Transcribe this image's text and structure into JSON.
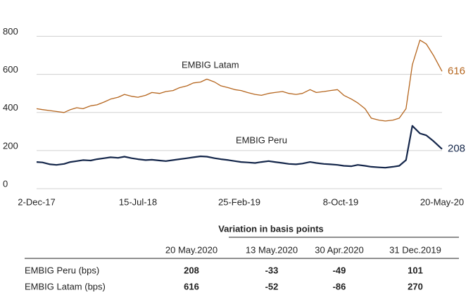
{
  "chart_data": {
    "type": "line",
    "annotations": [
      "EMBIG Latam",
      "EMBIG Peru"
    ],
    "x": [
      "2017-12-02",
      "2017-12-15",
      "2018-01-01",
      "2018-01-15",
      "2018-02-01",
      "2018-02-15",
      "2018-03-01",
      "2018-03-15",
      "2018-04-01",
      "2018-04-15",
      "2018-05-01",
      "2018-05-15",
      "2018-06-01",
      "2018-06-15",
      "2018-07-01",
      "2018-07-15",
      "2018-08-01",
      "2018-08-15",
      "2018-09-01",
      "2018-09-15",
      "2018-10-01",
      "2018-10-15",
      "2018-11-01",
      "2018-11-15",
      "2018-12-01",
      "2018-12-15",
      "2019-01-01",
      "2019-01-15",
      "2019-02-01",
      "2019-02-15",
      "2019-03-01",
      "2019-03-15",
      "2019-04-01",
      "2019-04-15",
      "2019-05-01",
      "2019-05-15",
      "2019-06-01",
      "2019-06-15",
      "2019-07-01",
      "2019-07-15",
      "2019-08-01",
      "2019-08-15",
      "2019-09-01",
      "2019-09-15",
      "2019-10-01",
      "2019-10-15",
      "2019-11-01",
      "2019-11-15",
      "2019-12-01",
      "2019-12-15",
      "2020-01-01",
      "2020-01-15",
      "2020-02-01",
      "2020-02-15",
      "2020-03-01",
      "2020-03-15",
      "2020-04-01",
      "2020-04-15",
      "2020-05-01",
      "2020-05-20"
    ],
    "series": [
      {
        "name": "EMBIG Latam",
        "color": "#b5651d",
        "values": [
          420,
          415,
          410,
          405,
          400,
          415,
          425,
          420,
          435,
          440,
          455,
          470,
          480,
          495,
          485,
          480,
          490,
          505,
          500,
          510,
          515,
          530,
          540,
          555,
          560,
          575,
          560,
          540,
          530,
          520,
          515,
          505,
          495,
          490,
          500,
          505,
          510,
          500,
          495,
          500,
          520,
          505,
          510,
          515,
          520,
          490,
          470,
          450,
          420,
          370,
          360,
          355,
          360,
          370,
          420,
          650,
          780,
          760,
          700,
          616
        ]
      },
      {
        "name": "EMBIG Peru",
        "color": "#14264a",
        "values": [
          140,
          138,
          128,
          125,
          130,
          140,
          145,
          150,
          148,
          155,
          160,
          165,
          162,
          168,
          160,
          155,
          150,
          152,
          148,
          145,
          150,
          155,
          160,
          165,
          170,
          168,
          160,
          155,
          150,
          145,
          140,
          138,
          135,
          140,
          145,
          140,
          135,
          130,
          128,
          132,
          140,
          135,
          130,
          128,
          125,
          120,
          118,
          125,
          120,
          115,
          112,
          110,
          115,
          120,
          150,
          330,
          290,
          280,
          250,
          208
        ]
      }
    ],
    "xlim": [
      "2017-12-02",
      "2020-05-20"
    ],
    "xticks": [
      {
        "value": "2017-12-02",
        "label": "2-Dec-17"
      },
      {
        "value": "2018-07-15",
        "label": "15-Jul-18"
      },
      {
        "value": "2019-02-25",
        "label": "25-Feb-19"
      },
      {
        "value": "2019-10-08",
        "label": "8-Oct-19"
      },
      {
        "value": "2020-05-20",
        "label": "20-May-20"
      }
    ],
    "ylim": [
      0,
      850
    ],
    "yticks": [
      0,
      200,
      400,
      600,
      800
    ],
    "grid": true
  },
  "table": {
    "group_header": "Variation in basis points",
    "columns": [
      "20 May.2020",
      "13 May.2020",
      "30 Apr.2020",
      "31 Dec.2019"
    ],
    "rows": [
      [
        "EMBIG Peru (bps)",
        208,
        -33,
        -49,
        101
      ],
      [
        "EMBIG Latam (bps)",
        616,
        -52,
        -86,
        270
      ]
    ]
  }
}
